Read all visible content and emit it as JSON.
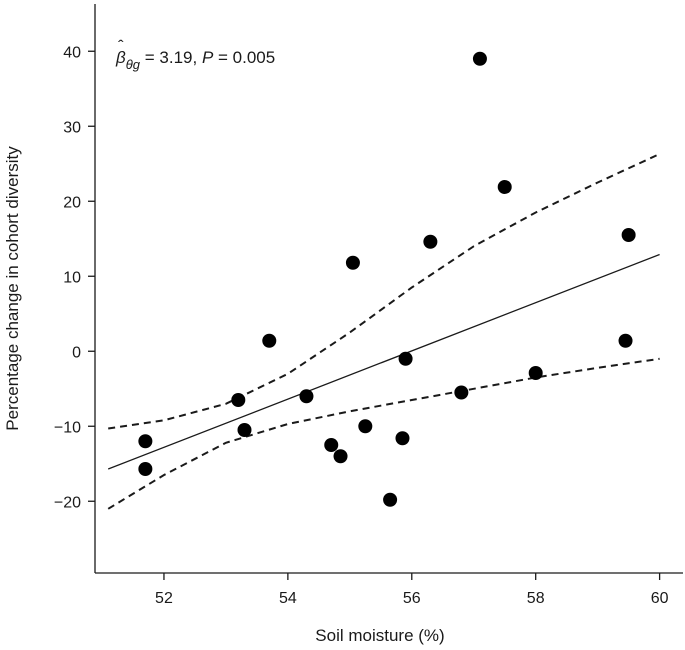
{
  "chart_data": {
    "type": "scatter",
    "xlabel": "Soil moisture (%)",
    "ylabel": "Percentage change in cohort diversity",
    "xlim": [
      51.0,
      60.2
    ],
    "ylim": [
      -28.5,
      45.5
    ],
    "x_ticks": [
      52,
      54,
      56,
      58,
      60
    ],
    "y_ticks": [
      -20,
      -10,
      0,
      10,
      20,
      30,
      40
    ],
    "x_tick_labels": [
      "52",
      "54",
      "56",
      "58",
      "60"
    ],
    "y_tick_labels": [
      "−20",
      "−10",
      "0",
      "10",
      "20",
      "30",
      "40"
    ],
    "annotation": {
      "beta": "β",
      "hat": "ˆ",
      "subscript": "θg",
      "value_text": " = 3.19, ",
      "p_label": "P",
      "p_text": " = 0.005"
    },
    "points": [
      {
        "x": 51.7,
        "y": -12.0
      },
      {
        "x": 51.7,
        "y": -15.7
      },
      {
        "x": 53.2,
        "y": -6.5
      },
      {
        "x": 53.3,
        "y": -10.5
      },
      {
        "x": 53.7,
        "y": 1.4
      },
      {
        "x": 54.3,
        "y": -6.0
      },
      {
        "x": 54.7,
        "y": -12.5
      },
      {
        "x": 54.85,
        "y": -14.0
      },
      {
        "x": 55.05,
        "y": 11.8
      },
      {
        "x": 55.25,
        "y": -10.0
      },
      {
        "x": 55.65,
        "y": -19.8
      },
      {
        "x": 55.85,
        "y": -11.6
      },
      {
        "x": 55.9,
        "y": -1.0
      },
      {
        "x": 56.3,
        "y": 14.6
      },
      {
        "x": 56.8,
        "y": -5.5
      },
      {
        "x": 57.1,
        "y": 39.0
      },
      {
        "x": 57.5,
        "y": 21.9
      },
      {
        "x": 58.0,
        "y": -2.9
      },
      {
        "x": 59.45,
        "y": 1.4
      },
      {
        "x": 59.5,
        "y": 15.5
      }
    ],
    "fit_line": [
      {
        "x": 51.1,
        "y": -15.7
      },
      {
        "x": 60.0,
        "y": 12.9
      }
    ],
    "ci_upper": [
      {
        "x": 51.1,
        "y": -10.3
      },
      {
        "x": 52.0,
        "y": -9.2
      },
      {
        "x": 53.0,
        "y": -7.0
      },
      {
        "x": 54.0,
        "y": -3.0
      },
      {
        "x": 55.0,
        "y": 2.5
      },
      {
        "x": 56.0,
        "y": 8.5
      },
      {
        "x": 57.0,
        "y": 14.0
      },
      {
        "x": 58.0,
        "y": 18.5
      },
      {
        "x": 59.0,
        "y": 22.5
      },
      {
        "x": 60.0,
        "y": 26.3
      }
    ],
    "ci_lower": [
      {
        "x": 51.1,
        "y": -21.0
      },
      {
        "x": 52.0,
        "y": -16.5
      },
      {
        "x": 53.0,
        "y": -12.2
      },
      {
        "x": 54.0,
        "y": -9.7
      },
      {
        "x": 55.0,
        "y": -8.0
      },
      {
        "x": 56.0,
        "y": -6.5
      },
      {
        "x": 57.0,
        "y": -5.0
      },
      {
        "x": 58.0,
        "y": -3.5
      },
      {
        "x": 59.0,
        "y": -2.2
      },
      {
        "x": 60.0,
        "y": -1.0
      }
    ],
    "grid": false,
    "legend": "none"
  }
}
